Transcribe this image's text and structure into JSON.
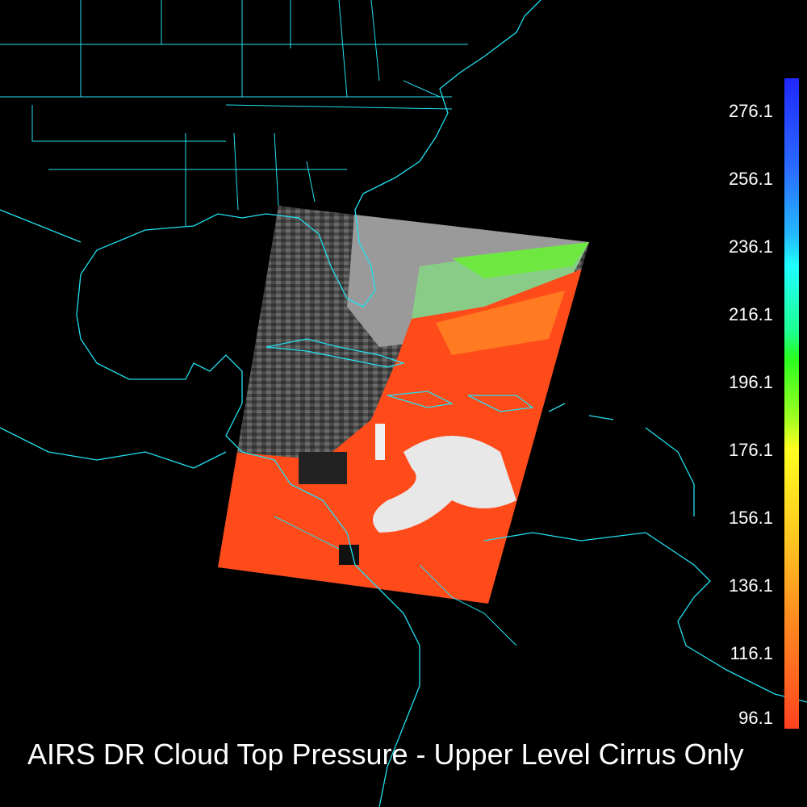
{
  "title": "AIRS DR Cloud Top Pressure - Upper Level Cirrus Only",
  "colorbar": {
    "ticks": [
      "276.1",
      "256.1",
      "236.1",
      "216.1",
      "196.1",
      "176.1",
      "156.1",
      "136.1",
      "116.1",
      "96.1"
    ],
    "min": 96.1,
    "max": 276.1
  },
  "colors": {
    "coastline": "#22e0f0",
    "background": "#000000",
    "cloud_low": "#ff4a1a",
    "clear": "#5a5a5a"
  }
}
